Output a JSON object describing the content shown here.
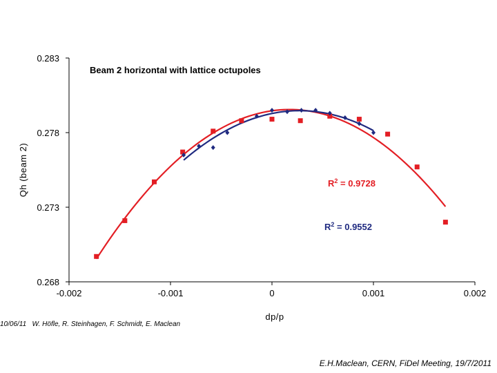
{
  "chart_data": {
    "type": "scatter",
    "title": "Beam 2 horizontal with lattice octupoles",
    "xlabel": "dp/p",
    "ylabel": "Qh (beam 2)",
    "xlim": [
      -0.002,
      0.002
    ],
    "ylim": [
      0.268,
      0.283
    ],
    "x_ticks": [
      "-0.002",
      "-0.001",
      "0",
      "0.001",
      "0.002"
    ],
    "y_ticks": [
      "0.268",
      "0.273",
      "0.278",
      "0.283"
    ],
    "series": [
      {
        "color": "#e31e24",
        "marker": "square",
        "points": [
          [
            -0.00173,
            0.2697
          ],
          [
            -0.00145,
            0.2721
          ],
          [
            -0.00116,
            0.2747
          ],
          [
            -0.00088,
            0.2767
          ],
          [
            -0.00058,
            0.2781
          ],
          [
            -0.0003,
            0.2788
          ],
          [
            0.0,
            0.2789
          ],
          [
            0.00028,
            0.2788
          ],
          [
            0.00057,
            0.2791
          ],
          [
            0.00086,
            0.2789
          ],
          [
            0.00114,
            0.2779
          ],
          [
            0.00143,
            0.2757
          ],
          [
            0.00171,
            0.272
          ]
        ]
      },
      {
        "color": "#1f2a80",
        "marker": "diamond",
        "points": [
          [
            -0.00087,
            0.2765
          ],
          [
            -0.00072,
            0.2771
          ],
          [
            -0.00058,
            0.277
          ],
          [
            -0.00044,
            0.278
          ],
          [
            -0.00015,
            0.2791
          ],
          [
            0.0,
            0.2795
          ],
          [
            0.00015,
            0.2794
          ],
          [
            0.00029,
            0.2795
          ],
          [
            0.00043,
            0.2795
          ],
          [
            0.00057,
            0.2793
          ],
          [
            0.00072,
            0.279
          ],
          [
            0.00086,
            0.2786
          ],
          [
            0.001,
            0.278
          ]
        ]
      }
    ],
    "annotations": [
      {
        "text": "R2 = 0.9728",
        "color": "#e31e24"
      },
      {
        "text": "R2 = 0.9552",
        "color": "#1f2a80"
      }
    ]
  },
  "footer": {
    "date": "10/06/11",
    "authors": "W. Höfle, R. Steinhagen, F. Schmidt, E. Maclean",
    "event": "E.H.Maclean, CERN, FiDel Meeting, 19/7/2011"
  }
}
